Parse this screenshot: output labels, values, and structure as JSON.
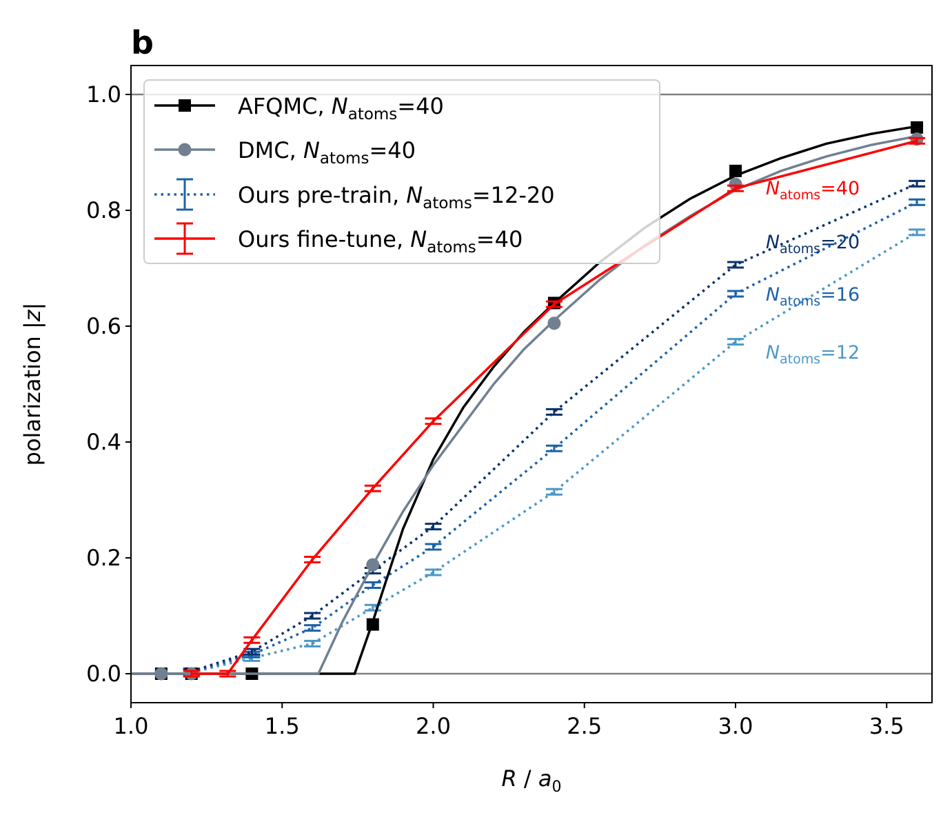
{
  "panel_label": "b",
  "chart_data": {
    "type": "line",
    "xlabel": "R / a0",
    "ylabel": "polarization |z|",
    "xlim": [
      1.0,
      3.65
    ],
    "ylim": [
      -0.05,
      1.05
    ],
    "xticks": [
      1.0,
      1.5,
      2.0,
      2.5,
      3.0,
      3.5
    ],
    "xtick_labels": [
      "1.0",
      "1.5",
      "2.0",
      "2.5",
      "3.0",
      "3.5"
    ],
    "yticks": [
      0.0,
      0.2,
      0.4,
      0.6,
      0.8,
      1.0
    ],
    "ytick_labels": [
      "0.0",
      "0.2",
      "0.4",
      "0.6",
      "0.8",
      "1.0"
    ],
    "reference_lines": [
      0.0,
      1.0
    ],
    "grid": false,
    "legend_position": "upper-left",
    "series": [
      {
        "name": "AFQMC, Natoms=40",
        "legend_label": "AFQMC, ",
        "legend_sub": "atoms",
        "legend_suffix": "=40",
        "color": "#000000",
        "style": "solid",
        "marker": "square",
        "points": [
          [
            1.1,
            0.0
          ],
          [
            1.2,
            0.0
          ],
          [
            1.4,
            0.0
          ],
          [
            1.8,
            0.085
          ],
          [
            2.4,
            0.64
          ],
          [
            3.0,
            0.868
          ],
          [
            3.6,
            0.943
          ]
        ],
        "curve": [
          [
            1.0,
            0.0
          ],
          [
            1.74,
            0.0
          ],
          [
            1.8,
            0.09
          ],
          [
            1.9,
            0.25
          ],
          [
            2.0,
            0.37
          ],
          [
            2.1,
            0.46
          ],
          [
            2.2,
            0.53
          ],
          [
            2.3,
            0.59
          ],
          [
            2.4,
            0.64
          ],
          [
            2.55,
            0.71
          ],
          [
            2.7,
            0.77
          ],
          [
            2.85,
            0.82
          ],
          [
            3.0,
            0.86
          ],
          [
            3.15,
            0.89
          ],
          [
            3.3,
            0.915
          ],
          [
            3.45,
            0.932
          ],
          [
            3.6,
            0.945
          ]
        ]
      },
      {
        "name": "DMC, Natoms=40",
        "legend_label": "DMC, ",
        "legend_sub": "atoms",
        "legend_suffix": "=40",
        "color": "#708090",
        "style": "solid",
        "marker": "circle",
        "points": [
          [
            1.1,
            0.0
          ],
          [
            1.2,
            0.0
          ],
          [
            1.8,
            0.188
          ],
          [
            2.4,
            0.605
          ],
          [
            3.0,
            0.845
          ],
          [
            3.6,
            0.923
          ]
        ],
        "curve": [
          [
            1.0,
            0.0
          ],
          [
            1.62,
            0.0
          ],
          [
            1.7,
            0.09
          ],
          [
            1.8,
            0.188
          ],
          [
            1.9,
            0.28
          ],
          [
            2.0,
            0.36
          ],
          [
            2.1,
            0.43
          ],
          [
            2.2,
            0.5
          ],
          [
            2.3,
            0.56
          ],
          [
            2.4,
            0.61
          ],
          [
            2.55,
            0.68
          ],
          [
            2.7,
            0.74
          ],
          [
            2.85,
            0.79
          ],
          [
            3.0,
            0.835
          ],
          [
            3.15,
            0.868
          ],
          [
            3.3,
            0.893
          ],
          [
            3.45,
            0.913
          ],
          [
            3.6,
            0.928
          ]
        ]
      },
      {
        "name": "Ours pre-train, Natoms=20",
        "color": "#08306b",
        "style": "dotted",
        "marker": "errorbar",
        "inline_label": {
          "sub": "atoms",
          "suffix": "=20",
          "x": 3.1,
          "y": 0.745
        },
        "points": [
          [
            1.2,
            0.004
          ],
          [
            1.4,
            0.038
          ],
          [
            1.6,
            0.1
          ],
          [
            1.8,
            0.178
          ],
          [
            2.0,
            0.254
          ],
          [
            2.4,
            0.452
          ],
          [
            3.0,
            0.706
          ],
          [
            3.6,
            0.846
          ]
        ]
      },
      {
        "name": "Ours pre-train, Natoms=16",
        "color": "#1c62a8",
        "style": "dotted",
        "marker": "errorbar",
        "inline_label": {
          "sub": "atoms",
          "suffix": "=16",
          "x": 3.1,
          "y": 0.655
        },
        "points": [
          [
            1.2,
            0.003
          ],
          [
            1.4,
            0.033
          ],
          [
            1.6,
            0.079
          ],
          [
            1.8,
            0.153
          ],
          [
            2.0,
            0.219
          ],
          [
            2.4,
            0.389
          ],
          [
            3.0,
            0.656
          ],
          [
            3.6,
            0.814
          ]
        ]
      },
      {
        "name": "Ours pre-train, Natoms=12",
        "color": "#4a98c9",
        "style": "dotted",
        "marker": "errorbar",
        "inline_label": {
          "sub": "atoms",
          "suffix": "=12",
          "x": 3.1,
          "y": 0.555
        },
        "points": [
          [
            1.2,
            0.002
          ],
          [
            1.4,
            0.027
          ],
          [
            1.6,
            0.052
          ],
          [
            1.8,
            0.114
          ],
          [
            2.0,
            0.175
          ],
          [
            2.4,
            0.314
          ],
          [
            3.0,
            0.573
          ],
          [
            3.6,
            0.762
          ]
        ]
      },
      {
        "name": "Ours fine-tune, Natoms=40",
        "color": "#ff0000",
        "style": "solid",
        "marker": "errorbar",
        "inline_label": {
          "sub": "atoms",
          "suffix": "=40",
          "x": 3.1,
          "y": 0.838
        },
        "points": [
          [
            1.2,
            0.0
          ],
          [
            1.32,
            0.0
          ],
          [
            1.4,
            0.058
          ],
          [
            1.6,
            0.197
          ],
          [
            1.8,
            0.32
          ],
          [
            2.0,
            0.436
          ],
          [
            2.4,
            0.638
          ],
          [
            3.0,
            0.838
          ],
          [
            3.6,
            0.92
          ]
        ]
      }
    ],
    "legend": [
      {
        "series": 0,
        "prefix": "AFQMC, ",
        "sub": "atoms",
        "suffix": "=40"
      },
      {
        "series": 1,
        "prefix": "DMC, ",
        "sub": "atoms",
        "suffix": "=40"
      },
      {
        "series": 3,
        "prefix": "Ours pre-train, ",
        "sub": "atoms",
        "suffix": "=12-20"
      },
      {
        "series": 5,
        "prefix": "Ours fine-tune, ",
        "sub": "atoms",
        "suffix": "=40"
      }
    ]
  }
}
